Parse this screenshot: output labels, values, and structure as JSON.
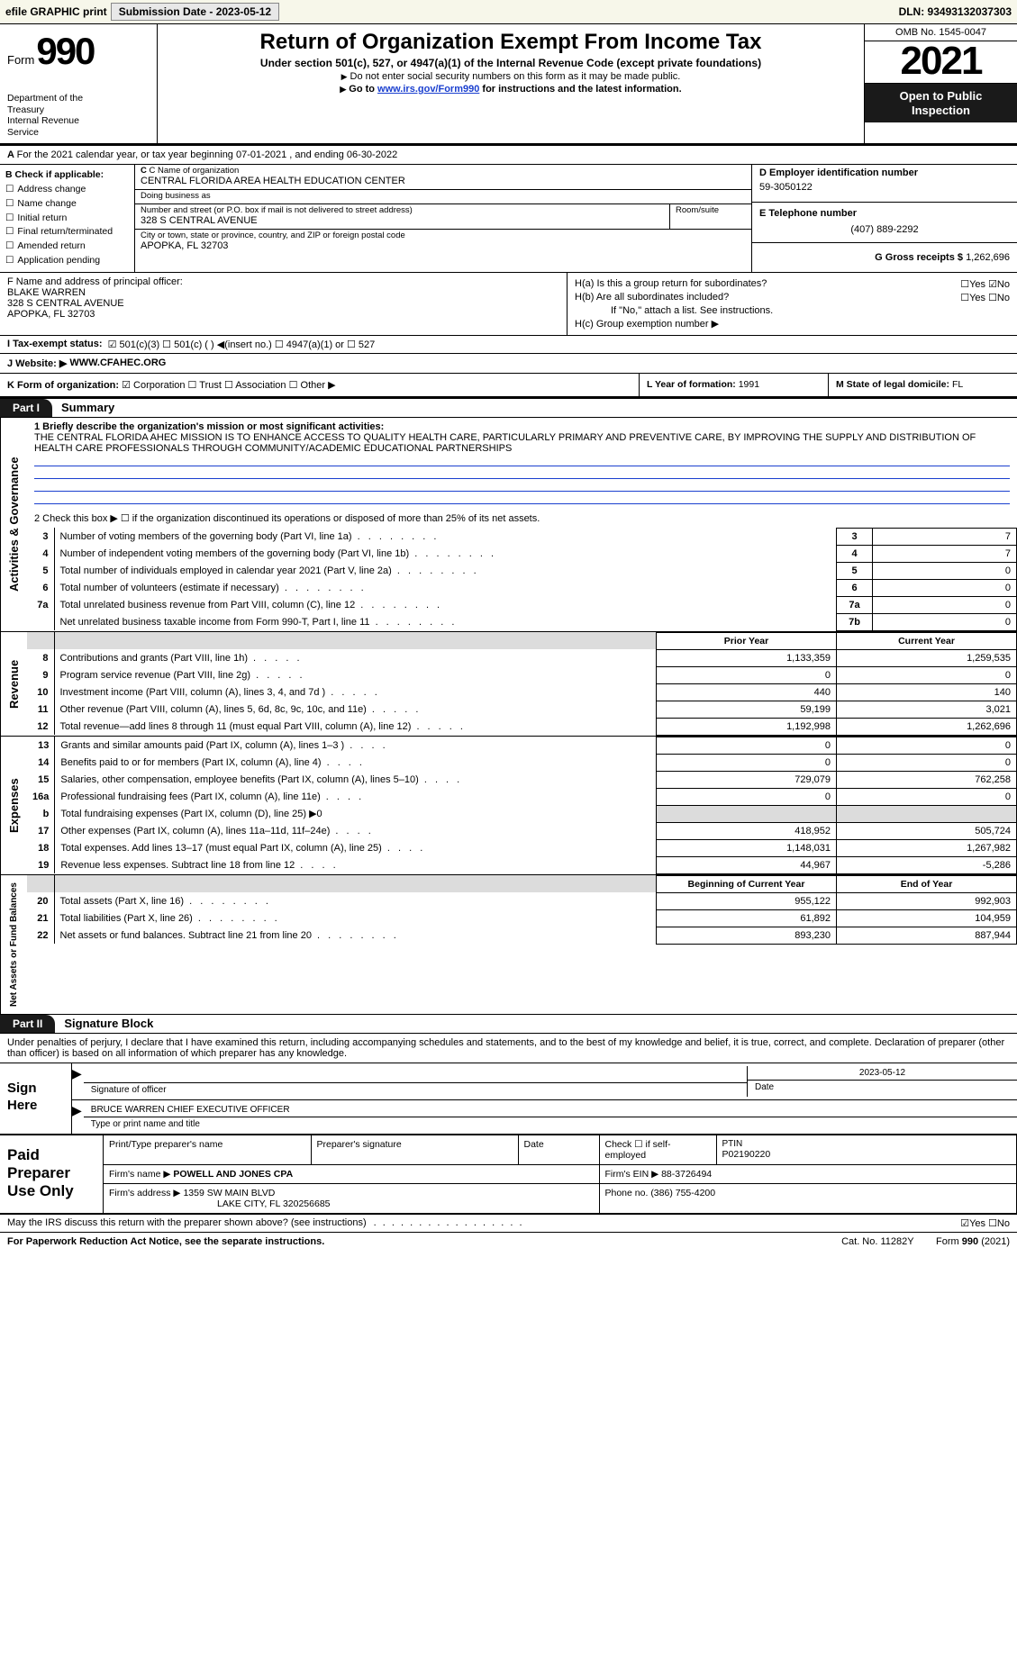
{
  "topbar": {
    "efile": "efile GRAPHIC print",
    "subDateLbl": "Submission Date - 2023-05-12",
    "dln": "DLN: 93493132037303"
  },
  "header": {
    "formWord": "Form",
    "formNum": "990",
    "dept": "Department of the Treasury\nInternal Revenue Service",
    "title": "Return of Organization Exempt From Income Tax",
    "subtitle": "Under section 501(c), 527, or 4947(a)(1) of the Internal Revenue Code (except private foundations)",
    "note1": "Do not enter social security numbers on this form as it may be made public.",
    "note2pre": "Go to ",
    "note2link": "www.irs.gov/Form990",
    "note2post": " for instructions and the latest information.",
    "omb": "OMB No. 1545-0047",
    "year": "2021",
    "openPub": "Open to Public Inspection"
  },
  "calYear": "For the 2021 calendar year, or tax year beginning 07-01-2021    , and ending 06-30-2022",
  "B": {
    "lbl": "B Check if applicable:",
    "items": [
      "Address change",
      "Name change",
      "Initial return",
      "Final return/terminated",
      "Amended return",
      "Application pending"
    ]
  },
  "C": {
    "nameLbl": "C Name of organization",
    "name": "CENTRAL FLORIDA AREA HEALTH EDUCATION CENTER",
    "dbaLbl": "Doing business as",
    "dba": "",
    "streetLbl": "Number and street (or P.O. box if mail is not delivered to street address)",
    "roomLbl": "Room/suite",
    "street": "328 S CENTRAL AVENUE",
    "cityLbl": "City or town, state or province, country, and ZIP or foreign postal code",
    "city": "APOPKA, FL  32703"
  },
  "D": {
    "lbl": "D Employer identification number",
    "val": "59-3050122"
  },
  "E": {
    "lbl": "E Telephone number",
    "val": "(407) 889-2292"
  },
  "G": {
    "lbl": "G Gross receipts $",
    "val": "1,262,696"
  },
  "F": {
    "lbl": "F  Name and address of principal officer:",
    "name": "BLAKE WARREN",
    "addr1": "328 S CENTRAL AVENUE",
    "addr2": "APOPKA, FL  32703"
  },
  "H": {
    "a": "H(a)  Is this a group return for subordinates?",
    "aAns": "☐Yes ☑No",
    "b": "H(b)  Are all subordinates included?",
    "bAns": "☐Yes ☐No",
    "bNote": "If \"No,\" attach a list. See instructions.",
    "c": "H(c)  Group exemption number ▶"
  },
  "I": {
    "lbl": "I     Tax-exempt status:",
    "opts": "☑ 501(c)(3)    ☐ 501(c) (  ) ◀(insert no.)    ☐ 4947(a)(1) or    ☐ 527"
  },
  "J": {
    "lbl": "J    Website: ▶",
    "val": "WWW.CFAHEC.ORG"
  },
  "K": {
    "lbl": "K Form of organization:",
    "opts": "☑ Corporation  ☐ Trust  ☐ Association  ☐ Other ▶"
  },
  "L": {
    "lbl": "L Year of formation:",
    "val": "1991"
  },
  "M": {
    "lbl": "M State of legal domicile:",
    "val": "FL"
  },
  "partI": {
    "hdr": "Part I",
    "title": "Summary",
    "vtab1": "Activities & Governance",
    "vtab2": "Revenue",
    "vtab3": "Expenses",
    "vtab4": "Net Assets or Fund Balances",
    "q1lbl": "1  Briefly describe the organization's mission or most significant activities:",
    "q1": "THE CENTRAL FLORIDA AHEC MISSION IS TO ENHANCE ACCESS TO QUALITY HEALTH CARE, PARTICULARLY PRIMARY AND PREVENTIVE CARE, BY IMPROVING THE SUPPLY AND DISTRIBUTION OF HEALTH CARE PROFESSIONALS THROUGH COMMUNITY/ACADEMIC EDUCATIONAL PARTNERSHIPS",
    "q2": "2   Check this box ▶ ☐  if the organization discontinued its operations or disposed of more than 25% of its net assets.",
    "rows": [
      {
        "n": "3",
        "t": "Number of voting members of the governing body (Part VI, line 1a)",
        "box": "3",
        "v": "7"
      },
      {
        "n": "4",
        "t": "Number of independent voting members of the governing body (Part VI, line 1b)",
        "box": "4",
        "v": "7"
      },
      {
        "n": "5",
        "t": "Total number of individuals employed in calendar year 2021 (Part V, line 2a)",
        "box": "5",
        "v": "0"
      },
      {
        "n": "6",
        "t": "Total number of volunteers (estimate if necessary)",
        "box": "6",
        "v": "0"
      },
      {
        "n": "7a",
        "t": "Total unrelated business revenue from Part VIII, column (C), line 12",
        "box": "7a",
        "v": "0"
      },
      {
        "n": "",
        "t": "Net unrelated business taxable income from Form 990-T, Part I, line 11",
        "box": "7b",
        "v": "0"
      }
    ],
    "priorHdr": "Prior Year",
    "currHdr": "Current Year",
    "rev": [
      {
        "n": "8",
        "t": "Contributions and grants (Part VIII, line 1h)",
        "p": "1,133,359",
        "c": "1,259,535"
      },
      {
        "n": "9",
        "t": "Program service revenue (Part VIII, line 2g)",
        "p": "0",
        "c": "0"
      },
      {
        "n": "10",
        "t": "Investment income (Part VIII, column (A), lines 3, 4, and 7d )",
        "p": "440",
        "c": "140"
      },
      {
        "n": "11",
        "t": "Other revenue (Part VIII, column (A), lines 5, 6d, 8c, 9c, 10c, and 11e)",
        "p": "59,199",
        "c": "3,021"
      },
      {
        "n": "12",
        "t": "Total revenue—add lines 8 through 11 (must equal Part VIII, column (A), line 12)",
        "p": "1,192,998",
        "c": "1,262,696"
      }
    ],
    "exp": [
      {
        "n": "13",
        "t": "Grants and similar amounts paid (Part IX, column (A), lines 1–3 )",
        "p": "0",
        "c": "0"
      },
      {
        "n": "14",
        "t": "Benefits paid to or for members (Part IX, column (A), line 4)",
        "p": "0",
        "c": "0"
      },
      {
        "n": "15",
        "t": "Salaries, other compensation, employee benefits (Part IX, column (A), lines 5–10)",
        "p": "729,079",
        "c": "762,258"
      },
      {
        "n": "16a",
        "t": "Professional fundraising fees (Part IX, column (A), line 11e)",
        "p": "0",
        "c": "0"
      },
      {
        "n": "b",
        "t": "Total fundraising expenses (Part IX, column (D), line 25) ▶0",
        "p": "",
        "c": "",
        "grey": true
      },
      {
        "n": "17",
        "t": "Other expenses (Part IX, column (A), lines 11a–11d, 11f–24e)",
        "p": "418,952",
        "c": "505,724"
      },
      {
        "n": "18",
        "t": "Total expenses. Add lines 13–17 (must equal Part IX, column (A), line 25)",
        "p": "1,148,031",
        "c": "1,267,982"
      },
      {
        "n": "19",
        "t": "Revenue less expenses. Subtract line 18 from line 12",
        "p": "44,967",
        "c": "-5,286"
      }
    ],
    "begHdr": "Beginning of Current Year",
    "endHdr": "End of Year",
    "net": [
      {
        "n": "20",
        "t": "Total assets (Part X, line 16)",
        "p": "955,122",
        "c": "992,903"
      },
      {
        "n": "21",
        "t": "Total liabilities (Part X, line 26)",
        "p": "61,892",
        "c": "104,959"
      },
      {
        "n": "22",
        "t": "Net assets or fund balances. Subtract line 21 from line 20",
        "p": "893,230",
        "c": "887,944"
      }
    ]
  },
  "partII": {
    "hdr": "Part II",
    "title": "Signature Block",
    "decl": "Under penalties of perjury, I declare that I have examined this return, including accompanying schedules and statements, and to the best of my knowledge and belief, it is true, correct, and complete. Declaration of preparer (other than officer) is based on all information of which preparer has any knowledge."
  },
  "sign": {
    "here": "Sign Here",
    "sigLbl": "Signature of officer",
    "date": "2023-05-12",
    "dateLbl": "Date",
    "name": "BRUCE WARREN  CHIEF EXECUTIVE OFFICER",
    "nameLbl": "Type or print name and title"
  },
  "prep": {
    "title": "Paid Preparer Use Only",
    "r1c1": "Print/Type preparer's name",
    "r1c2": "Preparer's signature",
    "r1c3": "Date",
    "r1c4": "Check ☐ if self-employed",
    "r1c5lbl": "PTIN",
    "r1c5": "P02190220",
    "r2c1": "Firm's name    ▶",
    "r2c1v": "POWELL AND JONES CPA",
    "r2c2": "Firm's EIN ▶",
    "r2c2v": "88-3726494",
    "r3c1": "Firm's address ▶",
    "r3c1v": "1359 SW MAIN BLVD",
    "r3c1v2": "LAKE CITY, FL  320256685",
    "r3c2": "Phone no.",
    "r3c2v": "(386) 755-4200"
  },
  "discuss": {
    "q": "May the IRS discuss this return with the preparer shown above? (see instructions)",
    "ans": "☑Yes  ☐No"
  },
  "footer": {
    "left": "For Paperwork Reduction Act Notice, see the separate instructions.",
    "mid": "Cat. No. 11282Y",
    "right": "Form 990 (2021)"
  }
}
